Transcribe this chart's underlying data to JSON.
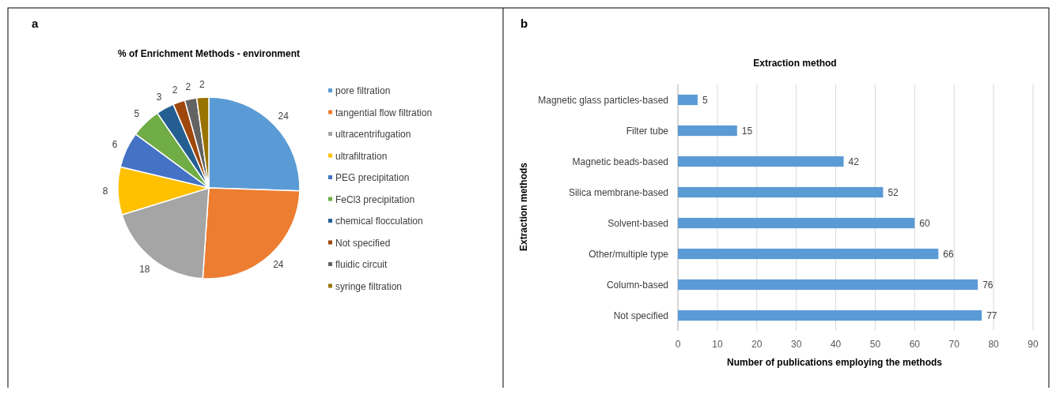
{
  "chart_data": [
    {
      "type": "pie",
      "title": "% of Enrichment Methods - environment",
      "annotations": [
        "a"
      ],
      "legend": "right",
      "data_labels": true,
      "categories": [
        "pore filtration",
        "tangential flow filtration",
        "ultracentrifugation",
        "ultrafiltration",
        "PEG precipitation",
        "FeCl3 precipitation",
        "chemical flocculation",
        "Not specified",
        "fluidic circuit",
        "syringe filtration"
      ],
      "values": [
        24,
        24,
        18,
        8,
        6,
        5,
        3,
        2,
        2,
        2
      ],
      "colors": [
        "#5b9bd5",
        "#ed7d31",
        "#a5a5a5",
        "#ffc000",
        "#4472c4",
        "#70ad47",
        "#255e91",
        "#9e480e",
        "#636363",
        "#997300"
      ]
    },
    {
      "type": "bar",
      "orientation": "horizontal",
      "title": "Extraction method",
      "annotations": [
        "b"
      ],
      "xlabel": "Number of publications employing the methods",
      "ylabel": "Extraction methods",
      "categories": [
        "Magnetic glass particles-based",
        "Filter tube",
        "Magnetic beads-based",
        "Silica membrane-based",
        "Solvent-based",
        "Other/multiple type",
        "Column-based",
        "Not specified"
      ],
      "values": [
        5,
        15,
        42,
        52,
        60,
        66,
        76,
        77
      ],
      "color": "#5b9bd5",
      "xlim": [
        0,
        90
      ],
      "xticks": [
        0,
        10,
        20,
        30,
        40,
        50,
        60,
        70,
        80,
        90
      ],
      "grid": "x",
      "data_labels": true
    }
  ]
}
